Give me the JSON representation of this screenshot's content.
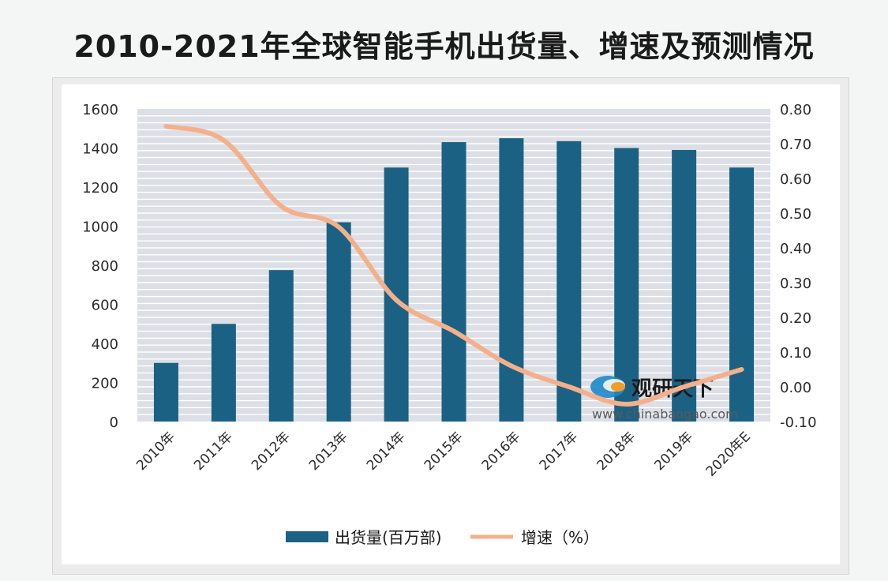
{
  "title": "2010-2021年全球智能手机出货量、增速及预测情况",
  "colors": {
    "bar": "#1b6183",
    "line": "#f4b08a",
    "plot_bg": "#dcdfe5",
    "grid": "#ffffff"
  },
  "watermark": {
    "name": "观研天下",
    "url": "www.chinabaogao.com"
  },
  "chart_data": {
    "type": "bar",
    "categories": [
      "2010年",
      "2011年",
      "2012年",
      "2013年",
      "2014年",
      "2015年",
      "2016年",
      "2017年",
      "2018年",
      "2019年",
      "2020年E"
    ],
    "series": [
      {
        "name": "出货量(百万部)",
        "type": "bar",
        "axis": "left",
        "values": [
          300,
          500,
          775,
          1020,
          1300,
          1430,
          1450,
          1435,
          1400,
          1390,
          1300
        ]
      },
      {
        "name": "增速（%）",
        "type": "line",
        "axis": "right",
        "values": [
          0.75,
          0.71,
          0.52,
          0.46,
          0.25,
          0.16,
          0.06,
          0.0,
          -0.05,
          0.0,
          0.05
        ]
      }
    ],
    "y_left": {
      "min": 0,
      "max": 1600,
      "ticks": [
        "0",
        "200",
        "400",
        "600",
        "800",
        "1000",
        "1200",
        "1400",
        "1600"
      ]
    },
    "y_right": {
      "min": -0.1,
      "max": 0.8,
      "ticks": [
        "-0.10",
        "0.00",
        "0.10",
        "0.20",
        "0.30",
        "0.40",
        "0.50",
        "0.60",
        "0.70",
        "0.80"
      ]
    },
    "grid": true,
    "legend": "bottom"
  }
}
